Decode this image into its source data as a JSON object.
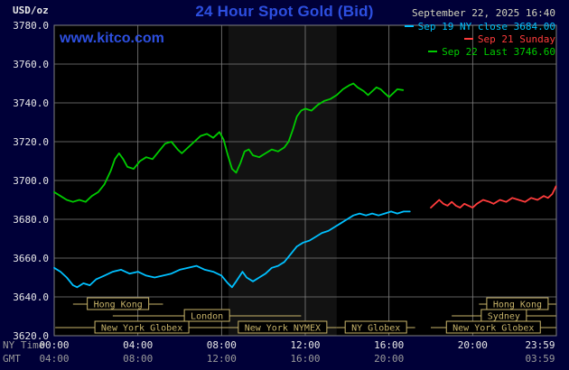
{
  "header": {
    "units_label": "USD/oz",
    "title": "24 Hour Spot Gold (Bid)",
    "datetime": "September 22, 2025 16:40",
    "watermark": "www.kitco.com"
  },
  "colors": {
    "background": "#000038",
    "plot_bg": "#000000",
    "grid": "#7f7f7f",
    "accent_blue": "#2d4fe0",
    "session_tan": "#c8b46a",
    "axis_text": "#e8e8e8",
    "muted_text": "#9a9a9a",
    "date_text": "#d6d6be",
    "band": "rgba(255,255,255,0.07)"
  },
  "chart_data": {
    "type": "line",
    "title": "24 Hour Spot Gold (Bid)",
    "ylabel": "USD/oz",
    "xlim": [
      0,
      24
    ],
    "ylim": [
      3620,
      3780
    ],
    "grid": true,
    "legend_position": "top-right",
    "nymex_band_hours": [
      8.33,
      13.5
    ],
    "axes": {
      "ny_row_label": "NY Time",
      "gmt_row_label": "GMT",
      "y_ticks": [
        {
          "v": 3780,
          "label": "3780.0"
        },
        {
          "v": 3760,
          "label": "3760.0"
        },
        {
          "v": 3740,
          "label": "3740.0"
        },
        {
          "v": 3720,
          "label": "3720.0"
        },
        {
          "v": 3700,
          "label": "3700.0"
        },
        {
          "v": 3680,
          "label": "3680.0"
        },
        {
          "v": 3660,
          "label": "3660.0"
        },
        {
          "v": 3640,
          "label": "3640.0"
        },
        {
          "v": 3620,
          "label": "3620.0"
        }
      ],
      "ny_ticks": [
        {
          "t": 0,
          "label": "00:00"
        },
        {
          "t": 4,
          "label": "04:00"
        },
        {
          "t": 8,
          "label": "08:00"
        },
        {
          "t": 12,
          "label": "12:00"
        },
        {
          "t": 16,
          "label": "16:00"
        },
        {
          "t": 20,
          "label": "20:00"
        },
        {
          "t": 23.983,
          "label": "23:59"
        }
      ],
      "gmt_ticks": [
        {
          "t": 0,
          "label": "04:00"
        },
        {
          "t": 4,
          "label": "08:00"
        },
        {
          "t": 8,
          "label": "12:00"
        },
        {
          "t": 12,
          "label": "16:00"
        },
        {
          "t": 16,
          "label": "20:00"
        },
        {
          "t": 23.983,
          "label": "03:59"
        }
      ]
    },
    "market_sessions": [
      {
        "row": 0,
        "start": 0.9,
        "end": 5.2,
        "label": "Hong Kong"
      },
      {
        "row": 0,
        "start": 20.3,
        "end": 23.98,
        "label": "Hong Kong"
      },
      {
        "row": 1,
        "start": 2.8,
        "end": 11.8,
        "label": "London"
      },
      {
        "row": 1,
        "start": 19.0,
        "end": 23.98,
        "label": "Sydney"
      },
      {
        "row": 2,
        "start": 0.05,
        "end": 8.33,
        "label": "New York Globex"
      },
      {
        "row": 2,
        "start": 8.33,
        "end": 13.5,
        "label": "New York NYMEX"
      },
      {
        "row": 2,
        "start": 13.5,
        "end": 17.25,
        "label": "NY Globex"
      },
      {
        "row": 2,
        "start": 18.0,
        "end": 23.98,
        "label": "New York Globex"
      }
    ],
    "series": [
      {
        "name": "Sep 19 NY close 3684.00",
        "color": "#00c0ff",
        "points": [
          [
            0,
            3655
          ],
          [
            0.3,
            3653
          ],
          [
            0.6,
            3650
          ],
          [
            0.9,
            3646
          ],
          [
            1.1,
            3645
          ],
          [
            1.4,
            3647
          ],
          [
            1.7,
            3646
          ],
          [
            2.0,
            3649
          ],
          [
            2.4,
            3651
          ],
          [
            2.8,
            3653
          ],
          [
            3.2,
            3654
          ],
          [
            3.6,
            3652
          ],
          [
            4.0,
            3653
          ],
          [
            4.4,
            3651
          ],
          [
            4.8,
            3650
          ],
          [
            5.2,
            3651
          ],
          [
            5.6,
            3652
          ],
          [
            6.0,
            3654
          ],
          [
            6.4,
            3655
          ],
          [
            6.8,
            3656
          ],
          [
            7.2,
            3654
          ],
          [
            7.6,
            3653
          ],
          [
            8.0,
            3651
          ],
          [
            8.3,
            3647
          ],
          [
            8.5,
            3645
          ],
          [
            8.7,
            3648
          ],
          [
            9.0,
            3653
          ],
          [
            9.2,
            3650
          ],
          [
            9.5,
            3648
          ],
          [
            9.8,
            3650
          ],
          [
            10.1,
            3652
          ],
          [
            10.4,
            3655
          ],
          [
            10.7,
            3656
          ],
          [
            11.0,
            3658
          ],
          [
            11.3,
            3662
          ],
          [
            11.6,
            3666
          ],
          [
            11.9,
            3668
          ],
          [
            12.2,
            3669
          ],
          [
            12.5,
            3671
          ],
          [
            12.8,
            3673
          ],
          [
            13.1,
            3674
          ],
          [
            13.4,
            3676
          ],
          [
            13.7,
            3678
          ],
          [
            14.0,
            3680
          ],
          [
            14.3,
            3682
          ],
          [
            14.6,
            3683
          ],
          [
            14.9,
            3682
          ],
          [
            15.2,
            3683
          ],
          [
            15.5,
            3682
          ],
          [
            15.8,
            3683
          ],
          [
            16.1,
            3684
          ],
          [
            16.4,
            3683
          ],
          [
            16.7,
            3684
          ],
          [
            17.0,
            3684
          ]
        ]
      },
      {
        "name": "Sep 21 Sunday",
        "color": "#ff3c3c",
        "points": [
          [
            18.0,
            3686
          ],
          [
            18.2,
            3688
          ],
          [
            18.4,
            3690
          ],
          [
            18.6,
            3688
          ],
          [
            18.8,
            3687
          ],
          [
            19.0,
            3689
          ],
          [
            19.2,
            3687
          ],
          [
            19.4,
            3686
          ],
          [
            19.6,
            3688
          ],
          [
            19.8,
            3687
          ],
          [
            20.0,
            3686
          ],
          [
            20.2,
            3688
          ],
          [
            20.5,
            3690
          ],
          [
            20.8,
            3689
          ],
          [
            21.0,
            3688
          ],
          [
            21.3,
            3690
          ],
          [
            21.6,
            3689
          ],
          [
            21.9,
            3691
          ],
          [
            22.2,
            3690
          ],
          [
            22.5,
            3689
          ],
          [
            22.8,
            3691
          ],
          [
            23.1,
            3690
          ],
          [
            23.4,
            3692
          ],
          [
            23.6,
            3691
          ],
          [
            23.8,
            3693
          ],
          [
            23.983,
            3697
          ]
        ]
      },
      {
        "name": "Sep 22 Last 3746.60",
        "color": "#00cc00",
        "points": [
          [
            0,
            3694
          ],
          [
            0.3,
            3692
          ],
          [
            0.6,
            3690
          ],
          [
            0.9,
            3689
          ],
          [
            1.2,
            3690
          ],
          [
            1.5,
            3689
          ],
          [
            1.8,
            3692
          ],
          [
            2.1,
            3694
          ],
          [
            2.4,
            3698
          ],
          [
            2.7,
            3705
          ],
          [
            2.9,
            3711
          ],
          [
            3.1,
            3714
          ],
          [
            3.3,
            3711
          ],
          [
            3.5,
            3707
          ],
          [
            3.8,
            3706
          ],
          [
            4.1,
            3710
          ],
          [
            4.4,
            3712
          ],
          [
            4.7,
            3711
          ],
          [
            5.0,
            3715
          ],
          [
            5.3,
            3719
          ],
          [
            5.6,
            3720
          ],
          [
            5.9,
            3716
          ],
          [
            6.1,
            3714
          ],
          [
            6.4,
            3717
          ],
          [
            6.7,
            3720
          ],
          [
            7.0,
            3723
          ],
          [
            7.3,
            3724
          ],
          [
            7.6,
            3722
          ],
          [
            7.9,
            3725
          ],
          [
            8.1,
            3721
          ],
          [
            8.3,
            3713
          ],
          [
            8.5,
            3706
          ],
          [
            8.7,
            3704
          ],
          [
            8.9,
            3709
          ],
          [
            9.1,
            3715
          ],
          [
            9.3,
            3716
          ],
          [
            9.5,
            3713
          ],
          [
            9.8,
            3712
          ],
          [
            10.1,
            3714
          ],
          [
            10.4,
            3716
          ],
          [
            10.7,
            3715
          ],
          [
            11.0,
            3717
          ],
          [
            11.2,
            3720
          ],
          [
            11.4,
            3726
          ],
          [
            11.6,
            3733
          ],
          [
            11.8,
            3736
          ],
          [
            12.0,
            3737
          ],
          [
            12.3,
            3736
          ],
          [
            12.6,
            3739
          ],
          [
            12.9,
            3741
          ],
          [
            13.2,
            3742
          ],
          [
            13.5,
            3744
          ],
          [
            13.8,
            3747
          ],
          [
            14.1,
            3749
          ],
          [
            14.3,
            3750
          ],
          [
            14.5,
            3748
          ],
          [
            14.8,
            3746
          ],
          [
            15.0,
            3744
          ],
          [
            15.2,
            3746
          ],
          [
            15.4,
            3748
          ],
          [
            15.6,
            3747
          ],
          [
            15.8,
            3745
          ],
          [
            16.0,
            3743
          ],
          [
            16.2,
            3745
          ],
          [
            16.4,
            3747
          ],
          [
            16.67,
            3746.6
          ]
        ]
      }
    ]
  }
}
